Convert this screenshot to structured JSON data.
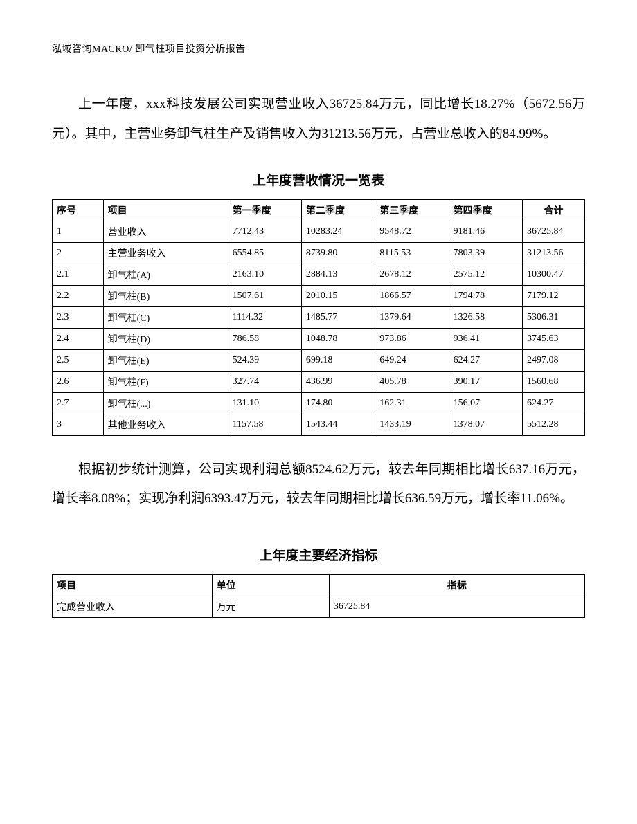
{
  "header": "泓域咨询MACRO/    卸气柱项目投资分析报告",
  "paragraph1": "上一年度，xxx科技发展公司实现营业收入36725.84万元，同比增长18.27%（5672.56万元）。其中，主营业务卸气柱生产及销售收入为31213.56万元，占营业总收入的84.99%。",
  "table1_title": "上年度营收情况一览表",
  "table1": {
    "headers": [
      "序号",
      "项目",
      "第一季度",
      "第二季度",
      "第三季度",
      "第四季度",
      "合计"
    ],
    "rows": [
      [
        "1",
        "营业收入",
        "7712.43",
        "10283.24",
        "9548.72",
        "9181.46",
        "36725.84"
      ],
      [
        "2",
        "主营业务收入",
        "6554.85",
        "8739.80",
        "8115.53",
        "7803.39",
        "31213.56"
      ],
      [
        "2.1",
        "卸气柱(A)",
        "2163.10",
        "2884.13",
        "2678.12",
        "2575.12",
        "10300.47"
      ],
      [
        "2.2",
        "卸气柱(B)",
        "1507.61",
        "2010.15",
        "1866.57",
        "1794.78",
        "7179.12"
      ],
      [
        "2.3",
        "卸气柱(C)",
        "1114.32",
        "1485.77",
        "1379.64",
        "1326.58",
        "5306.31"
      ],
      [
        "2.4",
        "卸气柱(D)",
        "786.58",
        "1048.78",
        "973.86",
        "936.41",
        "3745.63"
      ],
      [
        "2.5",
        "卸气柱(E)",
        "524.39",
        "699.18",
        "649.24",
        "624.27",
        "2497.08"
      ],
      [
        "2.6",
        "卸气柱(F)",
        "327.74",
        "436.99",
        "405.78",
        "390.17",
        "1560.68"
      ],
      [
        "2.7",
        "卸气柱(...)",
        "131.10",
        "174.80",
        "162.31",
        "156.07",
        "624.27"
      ],
      [
        "3",
        "其他业务收入",
        "1157.58",
        "1543.44",
        "1433.19",
        "1378.07",
        "5512.28"
      ]
    ]
  },
  "paragraph2": "根据初步统计测算，公司实现利润总额8524.62万元，较去年同期相比增长637.16万元，增长率8.08%；实现净利润6393.47万元，较去年同期相比增长636.59万元，增长率11.06%。",
  "table2_title": "上年度主要经济指标",
  "table2": {
    "headers": [
      "项目",
      "单位",
      "指标"
    ],
    "rows": [
      [
        "完成营业收入",
        "万元",
        "36725.84"
      ]
    ]
  }
}
